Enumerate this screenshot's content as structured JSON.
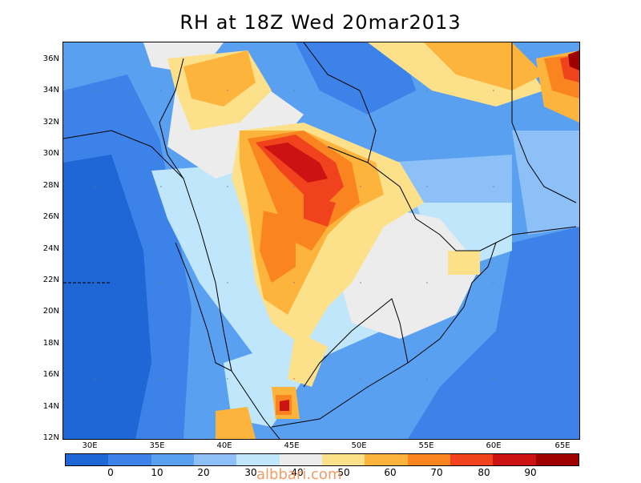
{
  "title": "RH at 18Z Wed 20mar2013",
  "lat_labels": [
    "36N",
    "34N",
    "32N",
    "30N",
    "28N",
    "26N",
    "24N",
    "22N",
    "20N",
    "18N",
    "16N",
    "14N",
    "12N"
  ],
  "lon_labels": [
    "30E",
    "35E",
    "40E",
    "45E",
    "50E",
    "55E",
    "60E",
    "65E"
  ],
  "colorbar": {
    "colors": [
      "#1f66d6",
      "#3c82e8",
      "#5aa0f0",
      "#8cc0f6",
      "#bfe6fa",
      "#ececec",
      "#fde08a",
      "#fdb43c",
      "#f98420",
      "#f0421c",
      "#cc1212",
      "#9e0000"
    ],
    "labels": [
      "0",
      "10",
      "20",
      "30",
      "40",
      "50",
      "60",
      "70",
      "80",
      "90"
    ]
  },
  "watermark": "albbari.com"
}
